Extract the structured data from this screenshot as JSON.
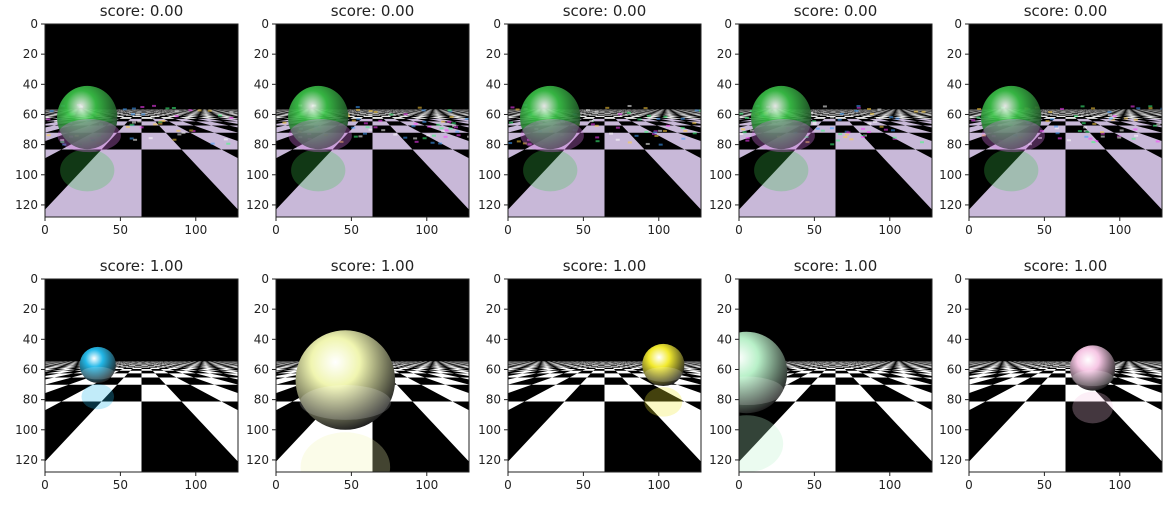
{
  "figure": {
    "rows": 2,
    "cols": 5,
    "panel_kind": "image"
  },
  "chart_data": [
    {
      "type": "image",
      "title": "score: 0.00",
      "score": 0.0,
      "row": 0,
      "col": 0,
      "sphere": {
        "color": "#3cc84a",
        "style": "glitch",
        "cx": 28,
        "cy": 62,
        "r": 20
      },
      "xlim": [
        0,
        128
      ],
      "ylim": [
        128,
        0
      ],
      "xticks": [
        0,
        50,
        100
      ],
      "yticks": [
        0,
        20,
        40,
        60,
        80,
        100,
        120
      ]
    },
    {
      "type": "image",
      "title": "score: 0.00",
      "score": 0.0,
      "row": 0,
      "col": 1,
      "sphere": {
        "color": "#3cc84a",
        "style": "glitch",
        "cx": 28,
        "cy": 62,
        "r": 20
      },
      "xlim": [
        0,
        128
      ],
      "ylim": [
        128,
        0
      ],
      "xticks": [
        0,
        50,
        100
      ],
      "yticks": [
        0,
        20,
        40,
        60,
        80,
        100,
        120
      ]
    },
    {
      "type": "image",
      "title": "score: 0.00",
      "score": 0.0,
      "row": 0,
      "col": 2,
      "sphere": {
        "color": "#3cc84a",
        "style": "glitch",
        "cx": 28,
        "cy": 62,
        "r": 20
      },
      "xlim": [
        0,
        128
      ],
      "ylim": [
        128,
        0
      ],
      "xticks": [
        0,
        50,
        100
      ],
      "yticks": [
        0,
        20,
        40,
        60,
        80,
        100,
        120
      ]
    },
    {
      "type": "image",
      "title": "score: 0.00",
      "score": 0.0,
      "row": 0,
      "col": 3,
      "sphere": {
        "color": "#3cc84a",
        "style": "glitch",
        "cx": 28,
        "cy": 62,
        "r": 20
      },
      "xlim": [
        0,
        128
      ],
      "ylim": [
        128,
        0
      ],
      "xticks": [
        0,
        50,
        100
      ],
      "yticks": [
        0,
        20,
        40,
        60,
        80,
        100,
        120
      ]
    },
    {
      "type": "image",
      "title": "score: 0.00",
      "score": 0.0,
      "row": 0,
      "col": 4,
      "sphere": {
        "color": "#3cc84a",
        "style": "glitch",
        "cx": 28,
        "cy": 62,
        "r": 20
      },
      "xlim": [
        0,
        128
      ],
      "ylim": [
        128,
        0
      ],
      "xticks": [
        0,
        50,
        100
      ],
      "yticks": [
        0,
        20,
        40,
        60,
        80,
        100,
        120
      ]
    },
    {
      "type": "image",
      "title": "score: 1.00",
      "score": 1.0,
      "row": 1,
      "col": 0,
      "sphere": {
        "color": "#22b8e8",
        "style": "clean",
        "cx": 35,
        "cy": 57,
        "r": 12
      },
      "xlim": [
        0,
        128
      ],
      "ylim": [
        128,
        0
      ],
      "xticks": [
        0,
        50,
        100
      ],
      "yticks": [
        0,
        20,
        40,
        60,
        80,
        100,
        120
      ]
    },
    {
      "type": "image",
      "title": "score: 1.00",
      "score": 1.0,
      "row": 1,
      "col": 1,
      "sphere": {
        "color": "#f0f5b0",
        "style": "clean",
        "cx": 46,
        "cy": 67,
        "r": 33
      },
      "xlim": [
        0,
        128
      ],
      "ylim": [
        128,
        0
      ],
      "xticks": [
        0,
        50,
        100
      ],
      "yticks": [
        0,
        20,
        40,
        60,
        80,
        100,
        120
      ]
    },
    {
      "type": "image",
      "title": "score: 1.00",
      "score": 1.0,
      "row": 1,
      "col": 2,
      "sphere": {
        "color": "#f2ea2e",
        "style": "clean",
        "cx": 103,
        "cy": 57,
        "r": 14
      },
      "xlim": [
        0,
        128
      ],
      "ylim": [
        128,
        0
      ],
      "xticks": [
        0,
        50,
        100
      ],
      "yticks": [
        0,
        20,
        40,
        60,
        80,
        100,
        120
      ]
    },
    {
      "type": "image",
      "title": "score: 1.00",
      "score": 1.0,
      "row": 1,
      "col": 3,
      "sphere": {
        "color": "#b8f0c8",
        "style": "clean",
        "cx": 5,
        "cy": 62,
        "r": 27
      },
      "xlim": [
        0,
        128
      ],
      "ylim": [
        128,
        0
      ],
      "xticks": [
        0,
        50,
        100
      ],
      "yticks": [
        0,
        20,
        40,
        60,
        80,
        100,
        120
      ]
    },
    {
      "type": "image",
      "title": "score: 1.00",
      "score": 1.0,
      "row": 1,
      "col": 4,
      "sphere": {
        "color": "#f6c6e4",
        "style": "clean",
        "cx": 82,
        "cy": 59,
        "r": 15
      },
      "xlim": [
        0,
        128
      ],
      "ylim": [
        128,
        0
      ],
      "xticks": [
        0,
        50,
        100
      ],
      "yticks": [
        0,
        20,
        40,
        60,
        80,
        100,
        120
      ]
    }
  ]
}
